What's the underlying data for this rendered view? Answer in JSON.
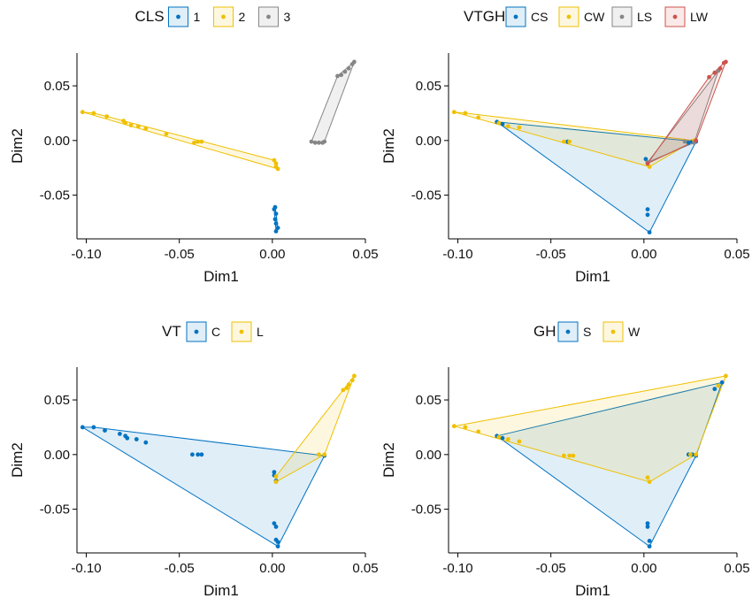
{
  "colors": {
    "blue": "#0073C2",
    "yellow": "#EFC000",
    "gray": "#868686",
    "red": "#CD534C"
  },
  "chart_data": [
    {
      "type": "scatter",
      "xlabel": "Dim1",
      "ylabel": "Dim2",
      "xlim": [
        -0.105,
        0.05
      ],
      "ylim": [
        -0.09,
        0.08
      ],
      "xticks": [
        -0.1,
        -0.05,
        0.0,
        0.05
      ],
      "xtick_labels": [
        "-0.10",
        "-0.05",
        "0.00",
        "0.05"
      ],
      "yticks": [
        -0.05,
        0.0,
        0.05
      ],
      "ytick_labels": [
        "-0.05",
        "0.00",
        "0.05"
      ],
      "legend_title": "CLS",
      "legend_position": "top",
      "hulls": true,
      "series": [
        {
          "name": "1",
          "color": "#0073C2",
          "points": [
            [
              0.001,
              -0.063
            ],
            [
              0.002,
              -0.067
            ],
            [
              0.0015,
              -0.072
            ],
            [
              0.002,
              -0.076
            ],
            [
              0.003,
              -0.08
            ],
            [
              0.002,
              -0.083
            ],
            [
              0.0015,
              -0.061
            ]
          ]
        },
        {
          "name": "2",
          "color": "#EFC000",
          "points": [
            [
              -0.102,
              0.026
            ],
            [
              -0.096,
              0.025
            ],
            [
              -0.089,
              0.022
            ],
            [
              -0.08,
              0.018
            ],
            [
              -0.079,
              0.016
            ],
            [
              -0.076,
              0.014
            ],
            [
              -0.072,
              0.013
            ],
            [
              -0.068,
              0.011
            ],
            [
              -0.057,
              0.006
            ],
            [
              -0.042,
              -0.002
            ],
            [
              -0.04,
              -0.001
            ],
            [
              -0.038,
              -0.001
            ],
            [
              0.001,
              -0.018
            ],
            [
              0.002,
              -0.021
            ],
            [
              0.002,
              -0.024
            ],
            [
              0.003,
              -0.026
            ]
          ]
        },
        {
          "name": "3",
          "color": "#868686",
          "points": [
            [
              0.021,
              -0.001
            ],
            [
              0.023,
              -0.002
            ],
            [
              0.025,
              -0.002
            ],
            [
              0.027,
              -0.002
            ],
            [
              0.028,
              -0.001
            ],
            [
              0.035,
              0.059
            ],
            [
              0.037,
              0.06
            ],
            [
              0.039,
              0.063
            ],
            [
              0.041,
              0.066
            ],
            [
              0.043,
              0.07
            ],
            [
              0.044,
              0.072
            ]
          ]
        }
      ]
    },
    {
      "type": "scatter",
      "xlabel": "Dim1",
      "ylabel": "Dim2",
      "xlim": [
        -0.105,
        0.05
      ],
      "ylim": [
        -0.09,
        0.08
      ],
      "xticks": [
        -0.1,
        -0.05,
        0.0,
        0.05
      ],
      "xtick_labels": [
        "-0.10",
        "-0.05",
        "0.00",
        "0.05"
      ],
      "yticks": [
        -0.05,
        0.0,
        0.05
      ],
      "ytick_labels": [
        "-0.05",
        "0.00",
        "0.05"
      ],
      "legend_title": "VTGH",
      "legend_position": "top",
      "hulls": true,
      "series": [
        {
          "name": "CS",
          "color": "#0073C2",
          "points": [
            [
              -0.079,
              0.017
            ],
            [
              -0.076,
              0.015
            ],
            [
              -0.041,
              -0.001
            ],
            [
              0.001,
              -0.017
            ],
            [
              0.002,
              -0.063
            ],
            [
              0.002,
              -0.068
            ],
            [
              0.003,
              -0.084
            ],
            [
              0.028,
              -0.001
            ],
            [
              0.026,
              -0.001
            ],
            [
              0.024,
              -0.002
            ]
          ]
        },
        {
          "name": "CW",
          "color": "#EFC000",
          "points": [
            [
              -0.102,
              0.026
            ],
            [
              -0.096,
              0.025
            ],
            [
              -0.089,
              0.021
            ],
            [
              -0.078,
              0.016
            ],
            [
              -0.073,
              0.013
            ],
            [
              -0.067,
              0.012
            ],
            [
              -0.043,
              -0.001
            ],
            [
              -0.04,
              -0.001
            ],
            [
              0.002,
              -0.021
            ],
            [
              0.003,
              -0.024
            ],
            [
              0.027,
              0.0
            ]
          ]
        },
        {
          "name": "LS",
          "color": "#868686",
          "points": [
            [
              0.022,
              -0.001
            ],
            [
              0.027,
              -0.002
            ],
            [
              0.002,
              -0.02
            ],
            [
              0.04,
              0.064
            ]
          ]
        },
        {
          "name": "LW",
          "color": "#CD534C",
          "points": [
            [
              0.002,
              -0.021
            ],
            [
              0.028,
              0.0
            ],
            [
              0.035,
              0.058
            ],
            [
              0.038,
              0.062
            ],
            [
              0.041,
              0.066
            ],
            [
              0.043,
              0.071
            ],
            [
              0.044,
              0.072
            ]
          ]
        }
      ]
    },
    {
      "type": "scatter",
      "xlabel": "Dim1",
      "ylabel": "Dim2",
      "xlim": [
        -0.105,
        0.05
      ],
      "ylim": [
        -0.09,
        0.08
      ],
      "xticks": [
        -0.1,
        -0.05,
        0.0,
        0.05
      ],
      "xtick_labels": [
        "-0.10",
        "-0.05",
        "0.00",
        "0.05"
      ],
      "yticks": [
        -0.05,
        0.0,
        0.05
      ],
      "ytick_labels": [
        "-0.05",
        "0.00",
        "0.05"
      ],
      "legend_title": "VT",
      "legend_position": "top",
      "hulls": true,
      "series": [
        {
          "name": "C",
          "color": "#0073C2",
          "points": [
            [
              -0.102,
              0.025
            ],
            [
              -0.096,
              0.025
            ],
            [
              -0.09,
              0.022
            ],
            [
              -0.082,
              0.019
            ],
            [
              -0.079,
              0.017
            ],
            [
              -0.078,
              0.015
            ],
            [
              -0.073,
              0.014
            ],
            [
              -0.068,
              0.011
            ],
            [
              -0.043,
              0.0
            ],
            [
              -0.04,
              0.0
            ],
            [
              -0.038,
              0.0
            ],
            [
              0.001,
              -0.016
            ],
            [
              0.001,
              -0.019
            ],
            [
              0.002,
              -0.024
            ],
            [
              0.001,
              -0.063
            ],
            [
              0.002,
              -0.066
            ],
            [
              0.002,
              -0.078
            ],
            [
              0.003,
              -0.08
            ],
            [
              0.003,
              -0.084
            ],
            [
              0.028,
              -0.001
            ]
          ]
        },
        {
          "name": "L",
          "color": "#EFC000",
          "points": [
            [
              0.002,
              -0.02
            ],
            [
              0.002,
              -0.025
            ],
            [
              0.025,
              0.0
            ],
            [
              0.028,
              0.0
            ],
            [
              0.038,
              0.059
            ],
            [
              0.04,
              0.061
            ],
            [
              0.041,
              0.064
            ],
            [
              0.043,
              0.068
            ],
            [
              0.044,
              0.072
            ]
          ]
        }
      ]
    },
    {
      "type": "scatter",
      "xlabel": "Dim1",
      "ylabel": "Dim2",
      "xlim": [
        -0.105,
        0.05
      ],
      "ylim": [
        -0.09,
        0.08
      ],
      "xticks": [
        -0.1,
        -0.05,
        0.0,
        0.05
      ],
      "xtick_labels": [
        "-0.10",
        "-0.05",
        "0.00",
        "0.05"
      ],
      "yticks": [
        -0.05,
        0.0,
        0.05
      ],
      "ytick_labels": [
        "-0.05",
        "0.00",
        "0.05"
      ],
      "legend_title": "GH",
      "legend_position": "top",
      "hulls": true,
      "series": [
        {
          "name": "S",
          "color": "#0073C2",
          "points": [
            [
              -0.079,
              0.017
            ],
            [
              -0.076,
              0.015
            ],
            [
              0.002,
              -0.063
            ],
            [
              0.002,
              -0.066
            ],
            [
              0.003,
              -0.079
            ],
            [
              0.003,
              -0.084
            ],
            [
              0.024,
              0.0
            ],
            [
              0.026,
              0.0
            ],
            [
              0.028,
              -0.001
            ],
            [
              0.038,
              0.06
            ],
            [
              0.042,
              0.066
            ]
          ]
        },
        {
          "name": "W",
          "color": "#EFC000",
          "points": [
            [
              -0.102,
              0.026
            ],
            [
              -0.096,
              0.025
            ],
            [
              -0.089,
              0.021
            ],
            [
              -0.078,
              0.016
            ],
            [
              -0.073,
              0.014
            ],
            [
              -0.067,
              0.012
            ],
            [
              -0.043,
              -0.001
            ],
            [
              -0.04,
              -0.001
            ],
            [
              -0.038,
              -0.001
            ],
            [
              0.002,
              -0.021
            ],
            [
              0.003,
              -0.025
            ],
            [
              0.025,
              0.0
            ],
            [
              0.028,
              0.0
            ],
            [
              0.04,
              0.063
            ],
            [
              0.044,
              0.072
            ]
          ]
        }
      ]
    }
  ]
}
